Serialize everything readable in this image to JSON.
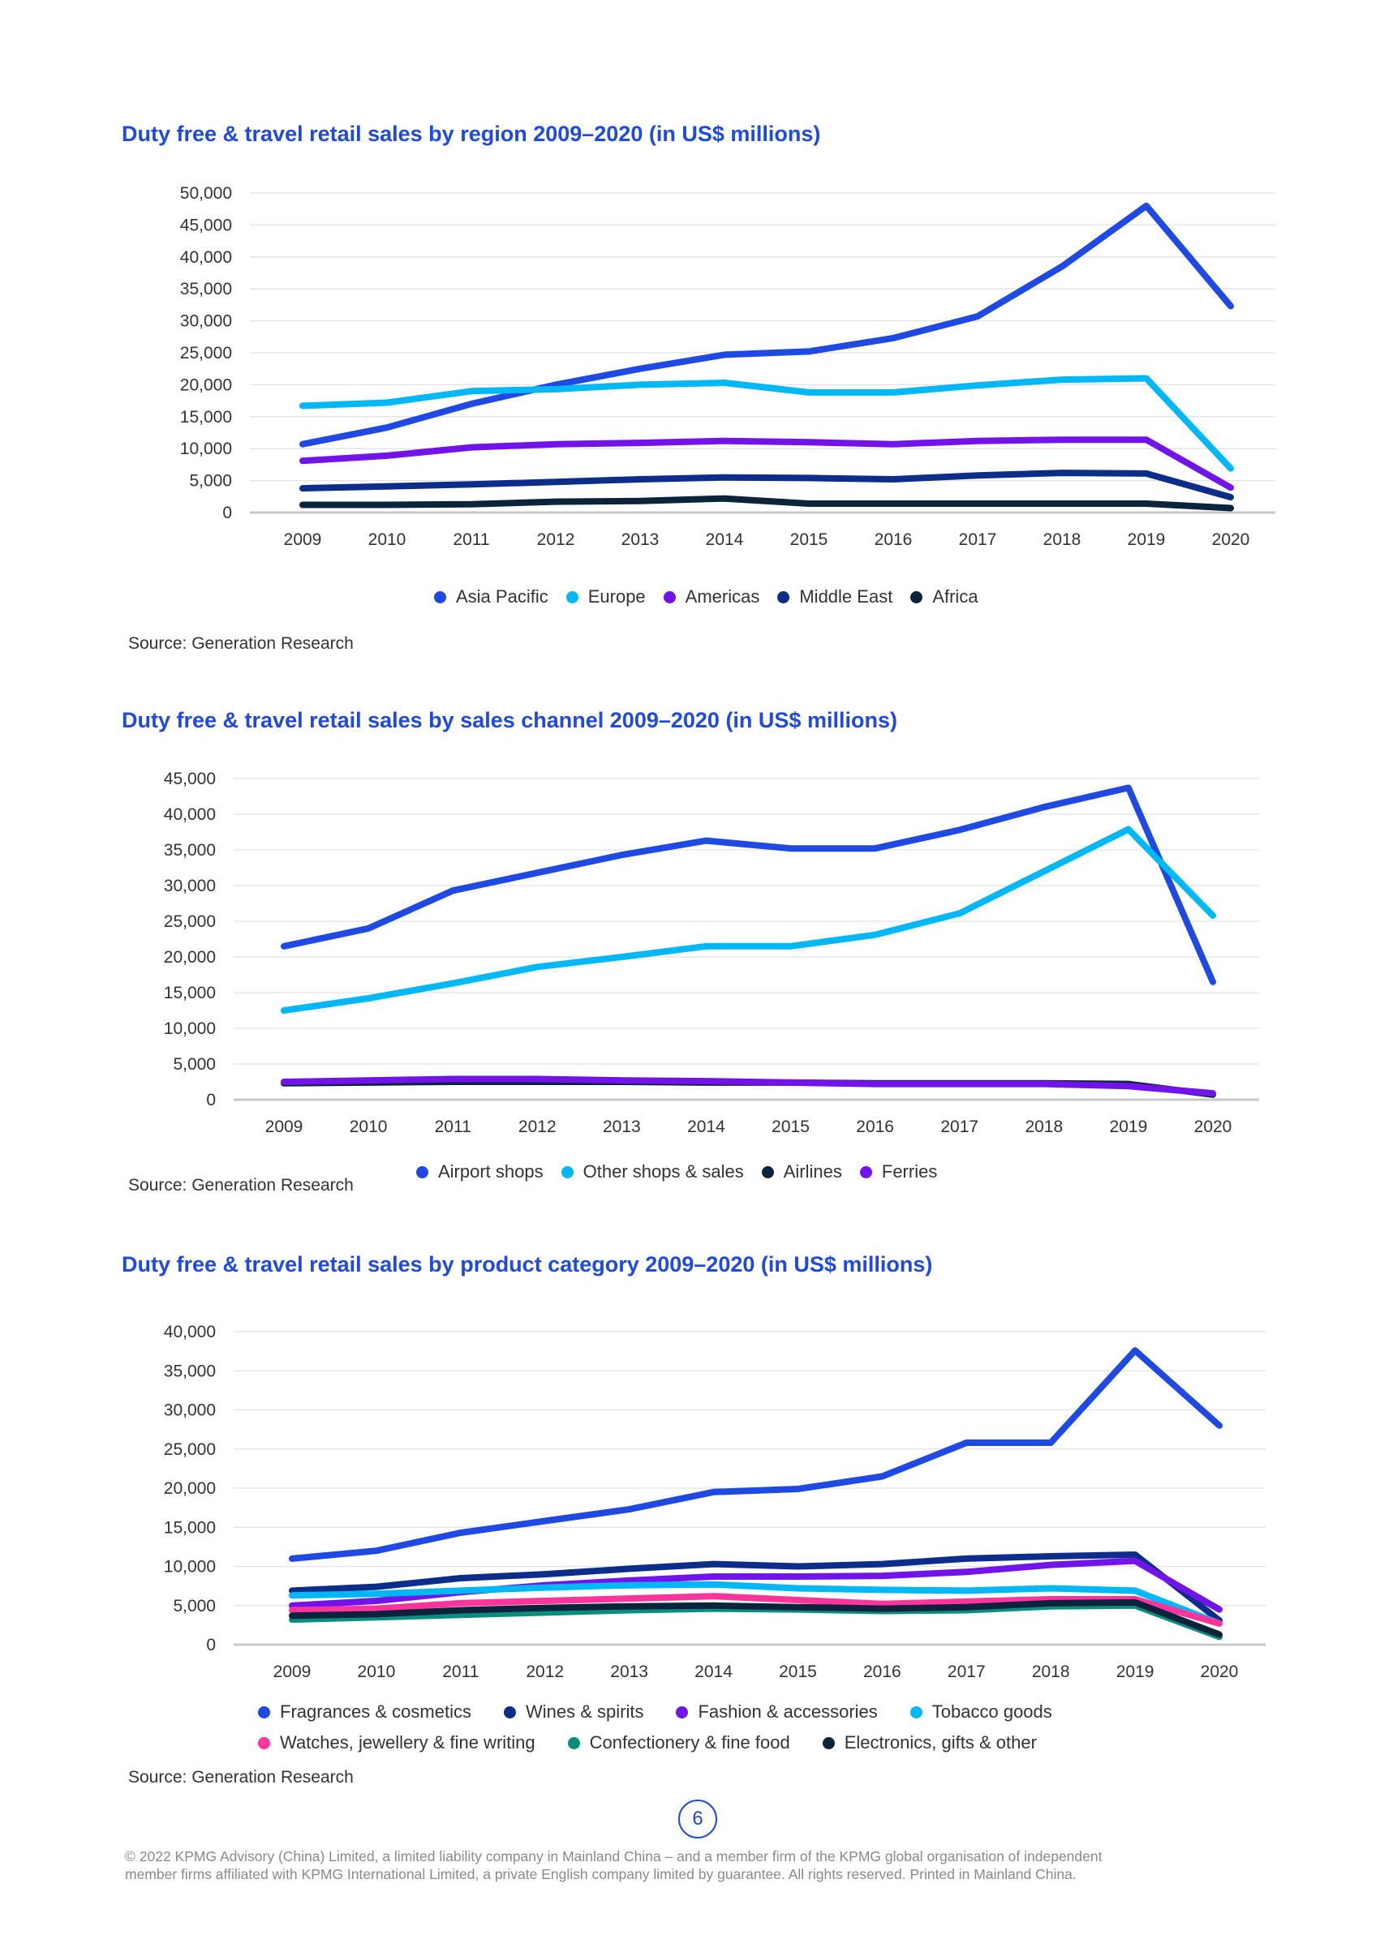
{
  "chart_data": [
    {
      "type": "line",
      "title": "Duty free & travel retail sales by region 2009–2020 (in US$ millions)",
      "xlabel": "",
      "ylabel": "",
      "categories": [
        "2009",
        "2010",
        "2011",
        "2012",
        "2013",
        "2014",
        "2015",
        "2016",
        "2017",
        "2018",
        "2019",
        "2020"
      ],
      "ylim": [
        0,
        50000
      ],
      "yticks": [
        0,
        5000,
        10000,
        15000,
        20000,
        25000,
        30000,
        35000,
        40000,
        45000,
        50000
      ],
      "ytick_labels": [
        "0",
        "5,000",
        "10,000",
        "15,000",
        "20,000",
        "25,000",
        "30,000",
        "35,000",
        "40,000",
        "45,000",
        "50,000"
      ],
      "grid": true,
      "legend_position": "bottom",
      "series": [
        {
          "name": "Asia Pacific",
          "color": "#1e49e2",
          "values": [
            10700,
            13300,
            17000,
            20000,
            22500,
            24700,
            25200,
            27300,
            30700,
            38500,
            48000,
            32300
          ]
        },
        {
          "name": "Europe",
          "color": "#00b8f5",
          "values": [
            16700,
            17200,
            19000,
            19300,
            20000,
            20300,
            18800,
            18800,
            19900,
            20800,
            21000,
            6900
          ]
        },
        {
          "name": "Americas",
          "color": "#7213ea",
          "values": [
            8100,
            8900,
            10200,
            10700,
            10900,
            11200,
            11000,
            10700,
            11200,
            11400,
            11400,
            3900
          ]
        },
        {
          "name": "Middle East",
          "color": "#0c2e8a",
          "values": [
            3800,
            4100,
            4400,
            4800,
            5200,
            5500,
            5400,
            5200,
            5800,
            6200,
            6100,
            2400
          ]
        },
        {
          "name": "Africa",
          "color": "#0c233c",
          "values": [
            1200,
            1200,
            1300,
            1700,
            1800,
            2200,
            1400,
            1400,
            1400,
            1400,
            1400,
            700
          ]
        }
      ],
      "source": "Source: Generation Research"
    },
    {
      "type": "line",
      "title": "Duty free & travel retail sales by sales channel 2009–2020 (in US$ millions)",
      "xlabel": "",
      "ylabel": "",
      "categories": [
        "2009",
        "2010",
        "2011",
        "2012",
        "2013",
        "2014",
        "2015",
        "2016",
        "2017",
        "2018",
        "2019",
        "2020"
      ],
      "ylim": [
        0,
        45000
      ],
      "yticks": [
        0,
        5000,
        10000,
        15000,
        20000,
        25000,
        30000,
        35000,
        40000,
        45000
      ],
      "ytick_labels": [
        "0",
        "5,000",
        "10,000",
        "15,000",
        "20,000",
        "25,000",
        "30,000",
        "35,000",
        "40,000",
        "45,000"
      ],
      "grid": true,
      "legend_position": "bottom",
      "series": [
        {
          "name": "Airport shops",
          "color": "#1e49e2",
          "values": [
            21500,
            24000,
            29300,
            31800,
            34300,
            36300,
            35200,
            35200,
            37800,
            41000,
            43700,
            16500
          ]
        },
        {
          "name": "Other shops & sales",
          "color": "#00b8f5",
          "values": [
            12500,
            14200,
            16300,
            18600,
            20000,
            21500,
            21500,
            23100,
            26100,
            32000,
            37900,
            25800
          ]
        },
        {
          "name": "Airlines",
          "color": "#0c233c",
          "values": [
            2300,
            2400,
            2500,
            2500,
            2500,
            2400,
            2400,
            2300,
            2300,
            2300,
            2200,
            700
          ]
        },
        {
          "name": "Ferries",
          "color": "#7213ea",
          "values": [
            2500,
            2700,
            2900,
            2900,
            2700,
            2600,
            2400,
            2200,
            2200,
            2200,
            1900,
            900
          ]
        }
      ],
      "source": "Source: Generation Research"
    },
    {
      "type": "line",
      "title": "Duty free & travel retail sales by product category 2009–2020 (in US$ millions)",
      "xlabel": "",
      "ylabel": "",
      "categories": [
        "2009",
        "2010",
        "2011",
        "2012",
        "2013",
        "2014",
        "2015",
        "2016",
        "2017",
        "2018",
        "2019",
        "2020"
      ],
      "ylim": [
        0,
        40000
      ],
      "yticks": [
        0,
        5000,
        10000,
        15000,
        20000,
        25000,
        30000,
        35000,
        40000
      ],
      "ytick_labels": [
        "0",
        "5,000",
        "10,000",
        "15,000",
        "20,000",
        "25,000",
        "30,000",
        "35,000",
        "40,000"
      ],
      "grid": true,
      "legend_position": "bottom",
      "series": [
        {
          "name": "Fragrances & cosmetics",
          "color": "#1e49e2",
          "values": [
            11000,
            12000,
            14300,
            15800,
            17300,
            19500,
            19900,
            21500,
            25800,
            25800,
            37600,
            28000
          ]
        },
        {
          "name": "Wines & spirits",
          "color": "#0c2e8a",
          "values": [
            6900,
            7400,
            8500,
            9000,
            9700,
            10300,
            10000,
            10300,
            11000,
            11300,
            11500,
            3100
          ]
        },
        {
          "name": "Fashion & accessories",
          "color": "#7213ea",
          "values": [
            5000,
            5600,
            6700,
            7600,
            8200,
            8700,
            8700,
            8800,
            9300,
            10200,
            10700,
            4500
          ]
        },
        {
          "name": "Tobacco goods",
          "color": "#00b8f5",
          "values": [
            6300,
            6500,
            6900,
            7300,
            7600,
            7700,
            7200,
            7000,
            6900,
            7200,
            6900,
            2700
          ]
        },
        {
          "name": "Watches, jewellery & fine writing",
          "color": "#fd349c",
          "values": [
            4400,
            4600,
            5300,
            5600,
            5900,
            6200,
            5700,
            5200,
            5500,
            5800,
            5800,
            2700
          ]
        },
        {
          "name": "Confectionery & fine food",
          "color": "#098e7e",
          "values": [
            3200,
            3500,
            3800,
            4100,
            4400,
            4600,
            4500,
            4300,
            4400,
            4900,
            5000,
            1000
          ]
        },
        {
          "name": "Electronics, gifts & other",
          "color": "#0c233c",
          "values": [
            3700,
            3900,
            4400,
            4700,
            4900,
            5000,
            4800,
            4600,
            4800,
            5300,
            5400,
            1300
          ]
        }
      ],
      "source": "Source: Generation Research"
    }
  ],
  "page_number": "6",
  "footer": {
    "line1": "© 2022 KPMG Advisory (China) Limited, a limited liability company in Mainland China – and a member firm of the KPMG global organisation of independent",
    "line2": "member firms affiliated with KPMG International Limited, a private English company limited by guarantee. All rights reserved. Printed in Mainland China."
  }
}
